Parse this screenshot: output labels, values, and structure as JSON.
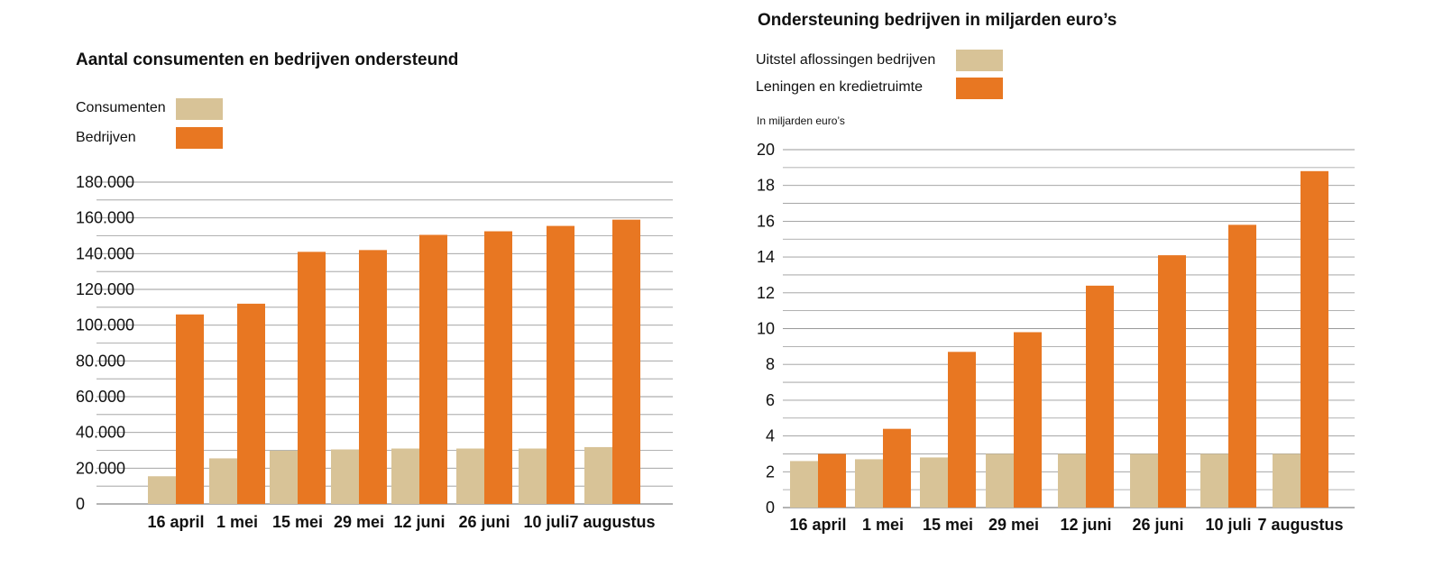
{
  "colors": {
    "beige": "#d8c397",
    "orange": "#e87722",
    "grid": "#999999",
    "axis": "#888888"
  },
  "chart_data": [
    {
      "type": "bar",
      "title": "Aantal consumenten en bedrijven ondersteund",
      "categories": [
        "16 april",
        "1 mei",
        "15 mei",
        "29 mei",
        "12 juni",
        "26 juni",
        "10 juli",
        "7 augustus"
      ],
      "series": [
        {
          "name": "Consumenten",
          "color": "#d8c397",
          "values": [
            15500,
            25500,
            29800,
            30500,
            31000,
            31000,
            31000,
            31800
          ]
        },
        {
          "name": "Bedrijven",
          "color": "#e87722",
          "values": [
            106000,
            112000,
            141000,
            142000,
            150500,
            152500,
            155500,
            159000
          ]
        }
      ],
      "ylim": [
        0,
        180000
      ],
      "yticks": [
        0,
        20000,
        40000,
        60000,
        80000,
        100000,
        120000,
        140000,
        160000,
        180000
      ],
      "ytick_labels": [
        "0",
        "20.000",
        "40.000",
        "60.000",
        "80.000",
        "100.000",
        "120.000",
        "140.000",
        "160.000",
        "180.000"
      ],
      "minor_grid": true,
      "legend": "top-left",
      "xlabel": "",
      "ylabel": ""
    },
    {
      "type": "bar",
      "title": "Ondersteuning bedrijven in miljarden euro’s",
      "unit_note": "In miljarden euro’s",
      "categories": [
        "16 april",
        "1 mei",
        "15 mei",
        "29 mei",
        "12 juni",
        "26 juni",
        "10 juli",
        "7 augustus"
      ],
      "series": [
        {
          "name": "Uitstel aflossingen bedrijven",
          "color": "#d8c397",
          "values": [
            2.6,
            2.7,
            2.8,
            3.0,
            3.0,
            3.0,
            3.0,
            3.0
          ]
        },
        {
          "name": "Leningen en kredietruimte",
          "color": "#e87722",
          "values": [
            3.0,
            4.4,
            8.7,
            9.8,
            12.4,
            14.1,
            15.8,
            18.8
          ]
        }
      ],
      "ylim": [
        0,
        20
      ],
      "yticks": [
        0,
        2,
        4,
        6,
        8,
        10,
        12,
        14,
        16,
        18,
        20
      ],
      "ytick_labels": [
        "0",
        "2",
        "4",
        "6",
        "8",
        "10",
        "12",
        "14",
        "16",
        "18",
        "20"
      ],
      "minor_grid": true,
      "legend": "top-left",
      "xlabel": "",
      "ylabel": ""
    }
  ]
}
